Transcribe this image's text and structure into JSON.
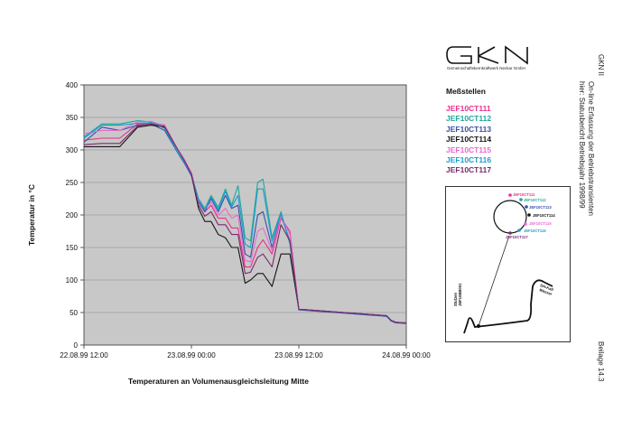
{
  "header": {
    "logo_text": "GKN",
    "logo_subtitle": "Gemeinschaftskernkraftwerk Neckar GmbH"
  },
  "legend": {
    "title": "Meßstellen",
    "items": [
      {
        "label": "JEF10CT111",
        "color": "#e8308c"
      },
      {
        "label": "JEF10CT112",
        "color": "#1fa89a"
      },
      {
        "label": "JEF10CT113",
        "color": "#3a4fa8"
      },
      {
        "label": "JEF10CT114",
        "color": "#161616"
      },
      {
        "label": "JEF10CT115",
        "color": "#e86ad0"
      },
      {
        "label": "JEF10CT116",
        "color": "#1c9cd0"
      },
      {
        "label": "JEF10CT117",
        "color": "#7a2a6a"
      }
    ]
  },
  "schematic": {
    "labels": [
      "JEF10CT111",
      "JEF10CT112",
      "JEF10CT113",
      "JEF10CT114",
      "JEF10CT115",
      "JEF10CT116",
      "JEF10CT117"
    ],
    "left_label_1": "Stutzen",
    "left_label_2": "JEF10BB001",
    "right_label_1": "DH-Kalt",
    "right_label_2": "Wasser"
  },
  "sidebar": {
    "line1": "GKN II",
    "line2": "On-line Erfassung der Betriebstransienten",
    "line3": "hier: Statusbericht Betriebsjahr 1998/99",
    "appendix": "Beilage 14.3"
  },
  "chart_data": {
    "type": "line",
    "title": "",
    "xlabel": "Temperaturen an Volumenausgleichsleitung Mitte",
    "ylabel": "Temperatur in °C",
    "ylim": [
      0,
      400
    ],
    "yticks": [
      0,
      50,
      100,
      150,
      200,
      250,
      300,
      350,
      400
    ],
    "xlim": [
      "1999-08-22 12:00",
      "1999-08-24 00:00"
    ],
    "xticks": [
      "22.08.99 12:00",
      "23.08.99 00:00",
      "23.08.99 12:00",
      "24.08.99 00:00"
    ],
    "x_unit": "hours after 22.08.99 12:00",
    "grid": "horizontal",
    "legend_position": "right",
    "x": [
      0,
      2,
      4,
      6,
      7.5,
      9,
      10.5,
      11.2,
      12,
      12.8,
      13.5,
      14.2,
      15,
      15.8,
      16.5,
      17.2,
      18,
      18.6,
      19.4,
      20,
      21,
      22,
      23,
      24,
      25,
      26,
      27,
      28,
      29,
      30,
      31,
      32,
      33,
      33.8,
      34.3,
      34.8,
      36
    ],
    "series": [
      {
        "name": "JEF10CT111",
        "values": [
          315,
          318,
          318,
          340,
          342,
          338,
          300,
          285,
          265,
          220,
          205,
          215,
          195,
          195,
          180,
          180,
          120,
          120,
          150,
          162,
          140,
          195,
          175,
          55,
          54,
          53,
          52,
          51,
          50,
          49,
          48,
          47,
          46,
          45,
          38,
          35,
          34
        ]
      },
      {
        "name": "JEF10CT112",
        "values": [
          320,
          340,
          340,
          345,
          343,
          335,
          295,
          280,
          262,
          225,
          210,
          230,
          212,
          240,
          215,
          245,
          165,
          160,
          250,
          255,
          165,
          205,
          155,
          55,
          54,
          53,
          52,
          51,
          50,
          49,
          48,
          47,
          46,
          45,
          38,
          35,
          34
        ]
      },
      {
        "name": "JEF10CT113",
        "values": [
          312,
          335,
          330,
          338,
          340,
          330,
          295,
          280,
          260,
          220,
          205,
          225,
          205,
          230,
          210,
          215,
          140,
          135,
          200,
          205,
          150,
          200,
          160,
          54,
          53,
          52,
          51,
          50,
          49,
          48,
          47,
          46,
          45,
          44,
          37,
          34,
          33
        ]
      },
      {
        "name": "JEF10CT114",
        "values": [
          305,
          305,
          305,
          335,
          338,
          335,
          300,
          285,
          262,
          210,
          190,
          190,
          170,
          165,
          150,
          150,
          95,
          100,
          110,
          110,
          90,
          140,
          140,
          55,
          54,
          53,
          52,
          51,
          50,
          49,
          48,
          47,
          46,
          45,
          38,
          35,
          34
        ]
      },
      {
        "name": "JEF10CT115",
        "values": [
          325,
          330,
          330,
          343,
          344,
          337,
          300,
          285,
          265,
          222,
          208,
          220,
          200,
          210,
          195,
          200,
          130,
          128,
          175,
          180,
          145,
          198,
          170,
          55,
          54,
          53,
          52,
          51,
          50,
          49,
          48,
          47,
          46,
          45,
          38,
          35,
          34
        ]
      },
      {
        "name": "JEF10CT116",
        "values": [
          318,
          338,
          338,
          341,
          342,
          333,
          296,
          282,
          262,
          224,
          207,
          228,
          208,
          236,
          212,
          230,
          155,
          150,
          240,
          240,
          160,
          202,
          158,
          55,
          54,
          53,
          52,
          51,
          50,
          49,
          48,
          47,
          46,
          45,
          38,
          35,
          34
        ]
      },
      {
        "name": "JEF10CT117",
        "values": [
          308,
          310,
          310,
          337,
          340,
          336,
          300,
          284,
          263,
          215,
          198,
          205,
          185,
          185,
          170,
          170,
          110,
          112,
          135,
          140,
          120,
          185,
          160,
          55,
          54,
          53,
          52,
          51,
          50,
          49,
          48,
          47,
          46,
          45,
          38,
          35,
          34
        ]
      }
    ]
  }
}
